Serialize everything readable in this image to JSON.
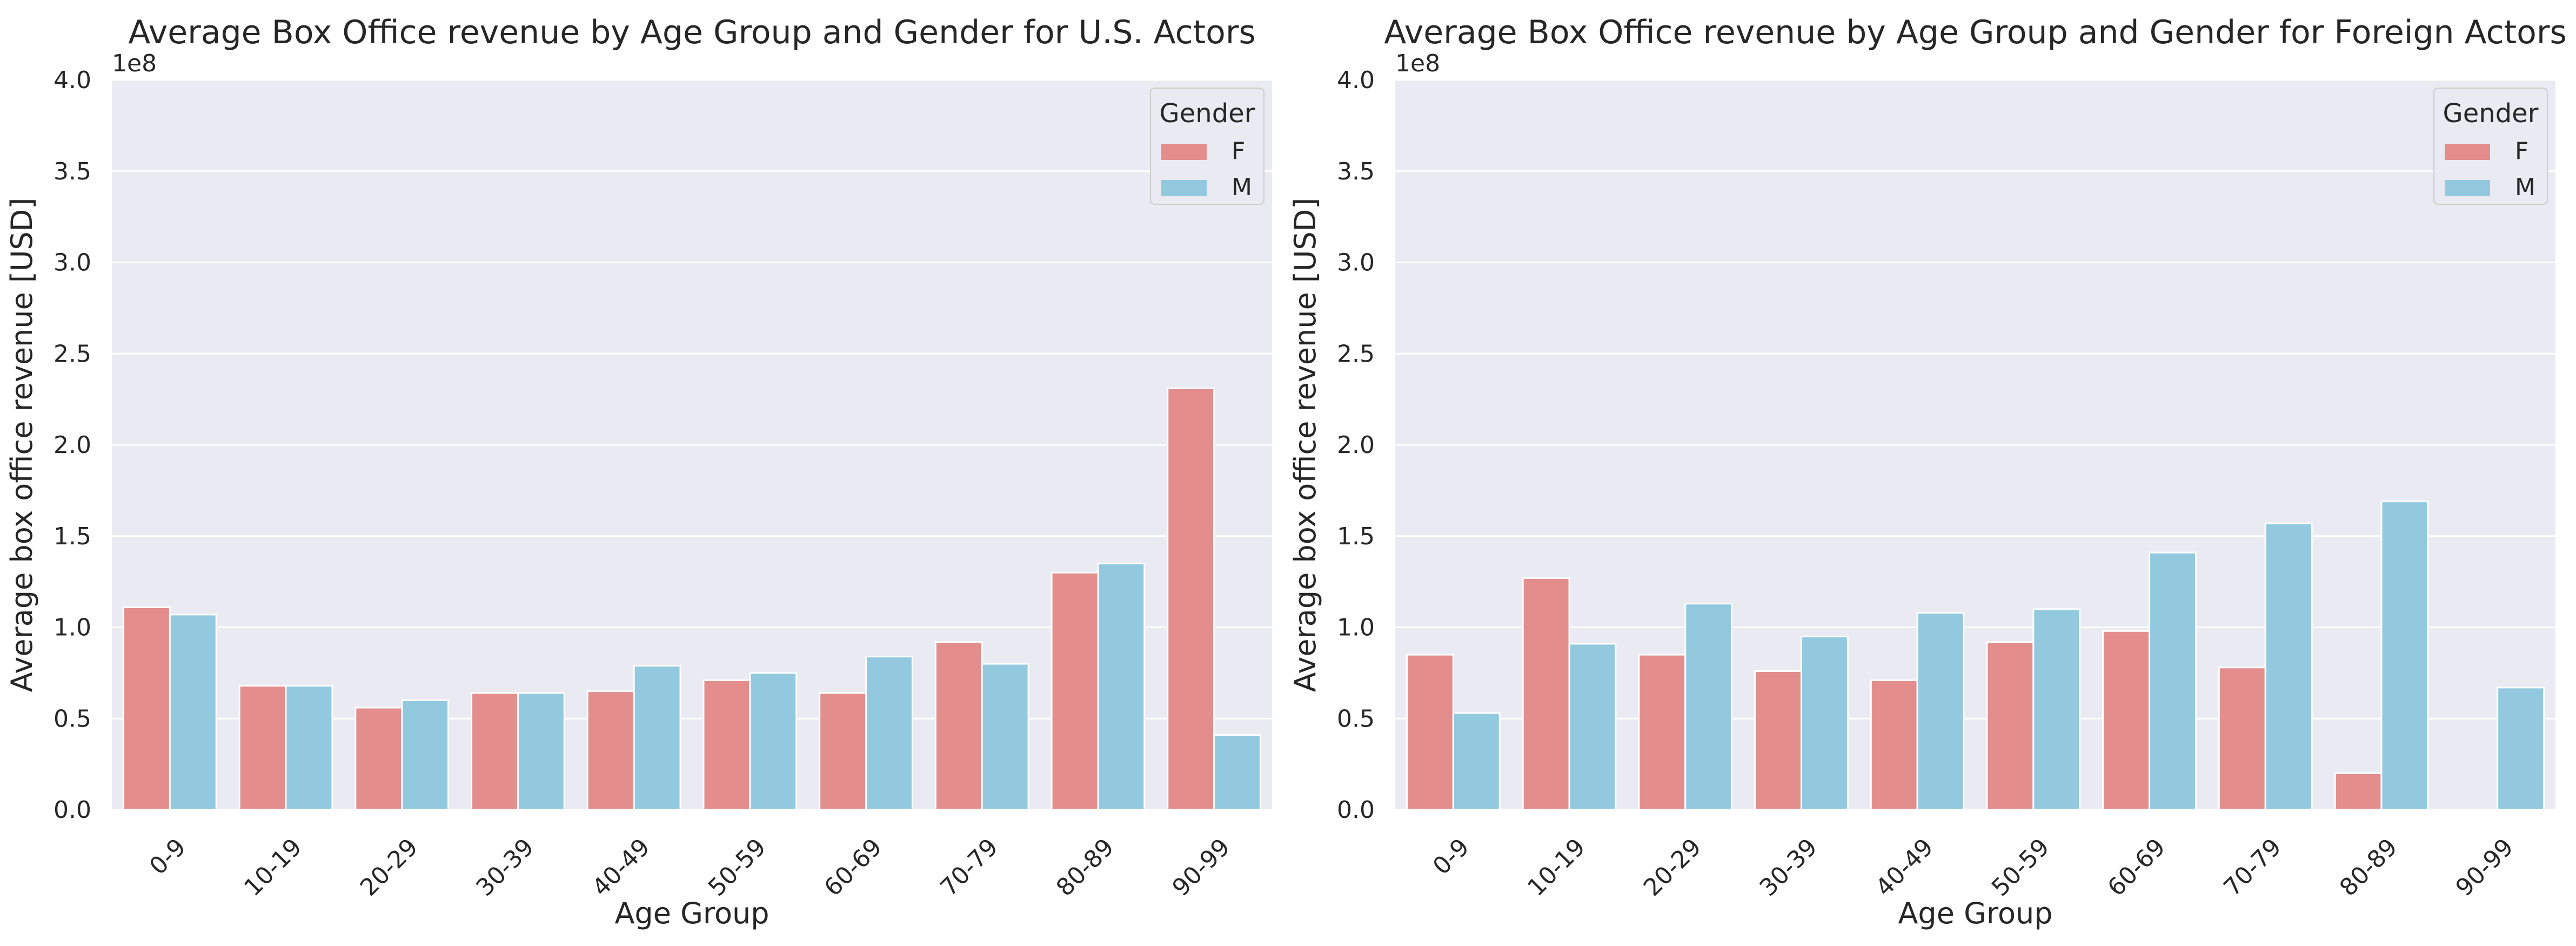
{
  "colors": {
    "plot_background": "#eaeaf2",
    "grid": "#ffffff",
    "text": "#262626",
    "series_F": "#e38d8d",
    "series_M": "#93c9df"
  },
  "chart_data": [
    {
      "type": "bar",
      "title": "Average Box Office revenue by Age Group and Gender for U.S. Actors",
      "xlabel": "Age Group",
      "ylabel": "Average box office revenue [USD]",
      "y_offset_label": "1e8",
      "ylim": [
        0,
        4.0
      ],
      "y_unit_multiplier": 100000000,
      "yticks": [
        "0.0",
        "0.5",
        "1.0",
        "1.5",
        "2.0",
        "2.5",
        "3.0",
        "3.5",
        "4.0"
      ],
      "categories": [
        "0-9",
        "10-19",
        "20-29",
        "30-39",
        "40-49",
        "50-59",
        "60-69",
        "70-79",
        "80-89",
        "90-99"
      ],
      "series": [
        {
          "name": "F",
          "values": [
            1.11,
            0.68,
            0.56,
            0.64,
            0.65,
            0.71,
            0.64,
            0.92,
            1.3,
            2.31
          ]
        },
        {
          "name": "M",
          "values": [
            1.07,
            0.68,
            0.6,
            0.64,
            0.79,
            0.75,
            0.84,
            0.8,
            1.35,
            0.41
          ]
        }
      ],
      "legend": {
        "title": "Gender",
        "entries": [
          "F",
          "M"
        ],
        "position": "top-right"
      },
      "grid": true
    },
    {
      "type": "bar",
      "title": "Average Box Office revenue by Age Group and Gender for Foreign Actors",
      "xlabel": "Age Group",
      "ylabel": "Average box office revenue [USD]",
      "y_offset_label": "1e8",
      "ylim": [
        0,
        4.0
      ],
      "y_unit_multiplier": 100000000,
      "yticks": [
        "0.0",
        "0.5",
        "1.0",
        "1.5",
        "2.0",
        "2.5",
        "3.0",
        "3.5",
        "4.0"
      ],
      "categories": [
        "0-9",
        "10-19",
        "20-29",
        "30-39",
        "40-49",
        "50-59",
        "60-69",
        "70-79",
        "80-89",
        "90-99"
      ],
      "series": [
        {
          "name": "F",
          "values": [
            0.85,
            1.27,
            0.85,
            0.76,
            0.71,
            0.92,
            0.98,
            0.78,
            0.2,
            0.0
          ]
        },
        {
          "name": "M",
          "values": [
            0.53,
            0.91,
            1.13,
            0.95,
            1.08,
            1.1,
            1.41,
            1.57,
            1.69,
            0.67
          ]
        }
      ],
      "legend": {
        "title": "Gender",
        "entries": [
          "F",
          "M"
        ],
        "position": "top-right"
      },
      "grid": true
    }
  ]
}
